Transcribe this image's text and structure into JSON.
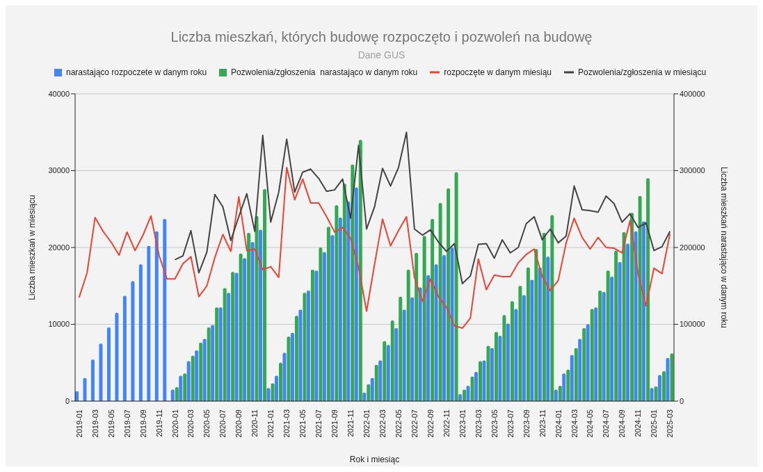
{
  "chart_data": {
    "type": "bar",
    "title": "Liczba mieszkań, których budowę rozpoczęto i pozwoleń na budowę",
    "subtitle": "Dane GUS",
    "xlabel": "Rok i miesiąc",
    "ylabel": "Liczba mieszkań w miesiącu",
    "y2label": "Liczba mieszkań narastająco w danym roku",
    "categories": [
      "2019-01",
      null,
      "2019-03",
      null,
      "2019-05",
      null,
      "2019-07",
      null,
      "2019-09",
      null,
      "2019-11",
      null,
      "2020-01",
      null,
      "2020-03",
      null,
      "2020-05",
      null,
      "2020-07",
      null,
      "2020-09",
      null,
      "2020-11",
      null,
      "2021-01",
      null,
      "2021-03",
      null,
      "2021-05",
      null,
      "2021-07",
      null,
      "2021-09",
      null,
      "2021-11",
      null,
      "2022-01",
      null,
      "2022-03",
      null,
      "2022-05",
      null,
      "2022-07",
      null,
      "2022-09",
      null,
      "2022-11",
      null,
      "2023-01",
      null,
      "2023-03",
      null,
      "2023-05",
      null,
      "2023-07",
      null,
      "2023-09",
      null,
      "2023-11",
      null,
      "2024-01",
      null,
      "2024-03",
      null,
      "2024-05",
      null,
      "2024-07",
      null,
      "2024-09",
      null,
      "2024-11",
      null,
      "2025-01",
      null,
      "2025-03"
    ],
    "series": [
      {
        "name": "narastająco rozpoczete w danym roku",
        "axis": "y2",
        "color": "#4285f4",
        "values": [
          13000,
          30000,
          54000,
          75000,
          96000,
          115000,
          137000,
          156000,
          178000,
          202000,
          221000,
          237000,
          15000,
          33000,
          52000,
          66000,
          81000,
          99000,
          122000,
          141000,
          167000,
          186000,
          207000,
          223000,
          17000,
          33000,
          63000,
          89000,
          119000,
          144000,
          170000,
          194000,
          216000,
          239000,
          260000,
          278000,
          11000,
          30000,
          53000,
          73000,
          95000,
          119000,
          135000,
          148000,
          164000,
          178000,
          190000,
          200000,
          9000,
          20000,
          38000,
          53000,
          69000,
          85000,
          101000,
          120000,
          138000,
          158000,
          174000,
          188000,
          15000,
          36000,
          60000,
          81000,
          100000,
          122000,
          142000,
          162000,
          181000,
          205000,
          221000,
          234000,
          17000,
          34000,
          56000
        ]
      },
      {
        "name": "Pozwolenia/zgłoszenia  narastająco w danym roku",
        "axis": "y2",
        "color": "#34a853",
        "values": [
          null,
          null,
          null,
          null,
          null,
          null,
          null,
          null,
          null,
          null,
          null,
          null,
          18000,
          36000,
          59000,
          76000,
          96000,
          122000,
          147000,
          168000,
          192000,
          219000,
          241000,
          276000,
          23000,
          50000,
          84000,
          111000,
          141000,
          171000,
          200000,
          227000,
          255000,
          283000,
          308000,
          340000,
          22000,
          47000,
          78000,
          105000,
          136000,
          171000,
          193000,
          215000,
          237000,
          258000,
          277000,
          298000,
          15000,
          32000,
          52000,
          72000,
          90000,
          112000,
          130000,
          150000,
          174000,
          198000,
          219000,
          242000,
          20000,
          41000,
          69000,
          95000,
          120000,
          144000,
          170000,
          196000,
          220000,
          245000,
          267000,
          290000,
          19000,
          39000,
          62000
        ]
      },
      {
        "name": "rozpoczęte w danym miesiąu",
        "type": "line",
        "axis": "y",
        "color": "#ea4335",
        "values": [
          13500,
          16700,
          23900,
          22100,
          20700,
          19000,
          22000,
          19600,
          21600,
          24100,
          19000,
          15900,
          15900,
          17900,
          18800,
          13600,
          15000,
          18700,
          21700,
          19500,
          26600,
          19600,
          19800,
          17100,
          17500,
          16100,
          30400,
          26200,
          28900,
          25800,
          25800,
          24000,
          22000,
          22600,
          21200,
          17400,
          11700,
          17800,
          23700,
          20200,
          22200,
          24000,
          16100,
          13000,
          15900,
          13600,
          12200,
          9800,
          9500,
          10800,
          18500,
          14500,
          16400,
          16200,
          16200,
          18000,
          19100,
          19800,
          16200,
          14400,
          15700,
          20600,
          23800,
          21300,
          19800,
          21300,
          20000,
          19900,
          19300,
          23500,
          16600,
          12400,
          17300,
          16600,
          21800
        ]
      },
      {
        "name": "Pozwolenia/zgłoszenia w miesiącu",
        "type": "line",
        "axis": "y",
        "color": "#434343",
        "values": [
          null,
          null,
          null,
          null,
          null,
          null,
          null,
          null,
          null,
          null,
          null,
          null,
          18400,
          18900,
          22200,
          16700,
          19400,
          26900,
          25300,
          20900,
          24000,
          27000,
          22100,
          34600,
          23300,
          27200,
          34100,
          27200,
          29800,
          30200,
          29000,
          27300,
          27500,
          28900,
          23800,
          33300,
          22400,
          25300,
          30300,
          28000,
          30400,
          35000,
          22400,
          21600,
          22300,
          20700,
          19500,
          20500,
          15300,
          16300,
          20400,
          20500,
          18600,
          21000,
          19300,
          20000,
          23100,
          24000,
          21000,
          22400,
          20600,
          21500,
          28000,
          24900,
          24800,
          24600,
          26700,
          25700,
          23300,
          24400,
          22600,
          23200,
          19600,
          20100,
          22100
        ]
      }
    ],
    "ylim": [
      0,
      40000
    ],
    "yticks": [
      0,
      10000,
      20000,
      30000,
      40000
    ],
    "y2lim": [
      0,
      400000
    ],
    "y2ticks": [
      0,
      100000,
      200000,
      300000,
      400000
    ],
    "grid": "y",
    "legend": "top",
    "line_style": "solid"
  }
}
